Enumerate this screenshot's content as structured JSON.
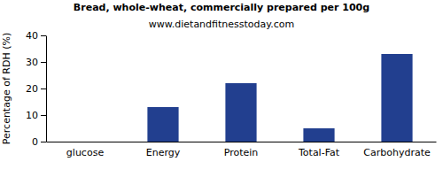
{
  "chart_data": {
    "type": "bar",
    "title": "Bread, whole-wheat, commercially prepared per 100g",
    "subtitle": "www.dietandfitnesstoday.com",
    "ylabel": "Percentage of RDH (%)",
    "categories": [
      "glucose",
      "Energy",
      "Protein",
      "Total-Fat",
      "Carbohydrate"
    ],
    "values": [
      0,
      13,
      22,
      5,
      33
    ],
    "color": "#223f8f",
    "ylim": [
      0,
      40
    ],
    "yticks": [
      0,
      10,
      20,
      30,
      40
    ],
    "grid": false
  }
}
